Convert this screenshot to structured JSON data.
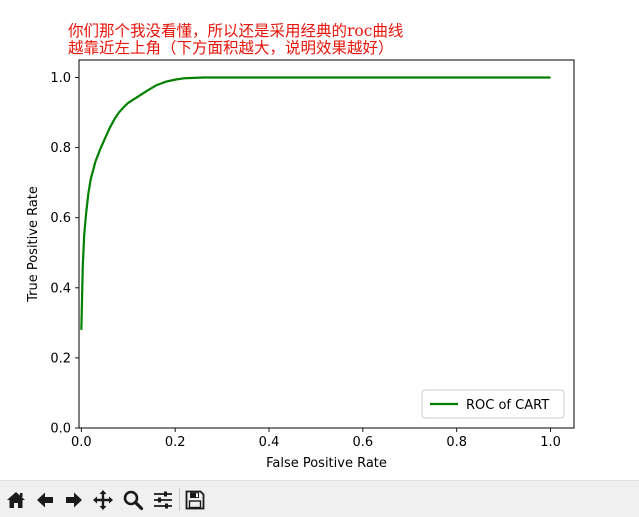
{
  "annotation": {
    "line1": "你们那个我没看懂，所以还是采用经典的roc曲线",
    "line2": "越靠近左上角（下方面积越大，说明效果越好）",
    "color": "#e8140a"
  },
  "chart_data": {
    "type": "line",
    "title": "",
    "xlabel": "False Positive Rate",
    "ylabel": "True Positive Rate",
    "xlim": [
      -0.005,
      1.05
    ],
    "ylim": [
      0.0,
      1.05
    ],
    "xticks": [
      "0.0",
      "0.2",
      "0.4",
      "0.6",
      "0.8",
      "1.0"
    ],
    "yticks": [
      "0.0",
      "0.2",
      "0.4",
      "0.6",
      "0.8",
      "1.0"
    ],
    "grid": false,
    "legend_position": "lower right",
    "series": [
      {
        "name": "ROC of CART",
        "color": "#008000",
        "x": [
          0.0,
          0.003,
          0.006,
          0.01,
          0.015,
          0.02,
          0.03,
          0.04,
          0.05,
          0.06,
          0.07,
          0.08,
          0.09,
          0.1,
          0.12,
          0.14,
          0.16,
          0.18,
          0.2,
          0.22,
          0.24,
          0.26,
          0.3,
          0.4,
          0.5,
          0.6,
          0.7,
          0.8,
          0.9,
          1.0
        ],
        "y": [
          0.28,
          0.46,
          0.55,
          0.61,
          0.67,
          0.71,
          0.76,
          0.795,
          0.825,
          0.855,
          0.88,
          0.9,
          0.915,
          0.928,
          0.945,
          0.962,
          0.978,
          0.988,
          0.994,
          0.998,
          0.999,
          1.0,
          1.0,
          1.0,
          1.0,
          1.0,
          1.0,
          1.0,
          1.0,
          1.0
        ]
      }
    ]
  },
  "toolbar": {
    "buttons": [
      "home-icon",
      "back-arrow-icon",
      "forward-arrow-icon",
      "pan-icon",
      "zoom-icon",
      "subplots-icon",
      "save-icon"
    ]
  }
}
